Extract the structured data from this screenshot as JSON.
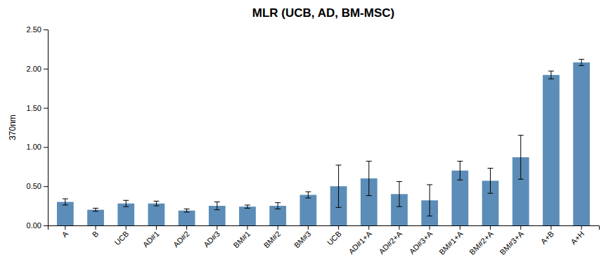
{
  "chart_data": {
    "type": "bar",
    "title": "MLR (UCB, AD, BM-MSC)",
    "ylabel": "370nm",
    "categories": [
      "A",
      "B",
      "UCB",
      "AD#1",
      "AD#2",
      "AD#3",
      "BM#1",
      "BM#2",
      "BM#3",
      "UCB",
      "AD#1+A",
      "AD#2+A",
      "AD#3+A",
      "BM#1+A",
      "BM#2+A",
      "BM#3+A",
      "A+B",
      "A+H"
    ],
    "values": [
      0.3,
      0.2,
      0.28,
      0.28,
      0.19,
      0.25,
      0.24,
      0.25,
      0.39,
      0.5,
      0.6,
      0.4,
      0.32,
      0.7,
      0.57,
      0.87,
      1.92,
      2.08
    ],
    "errors": [
      0.04,
      0.02,
      0.04,
      0.03,
      0.02,
      0.05,
      0.02,
      0.04,
      0.04,
      0.27,
      0.22,
      0.16,
      0.2,
      0.12,
      0.16,
      0.28,
      0.05,
      0.04
    ],
    "color": "#5B8DB8",
    "ylim": [
      0,
      2.5
    ],
    "yticks": [
      {
        "value": 0,
        "label": "0.00"
      },
      {
        "value": 0.5,
        "label": "0.50"
      },
      {
        "value": 1,
        "label": "1.00"
      },
      {
        "value": 1.5,
        "label": "1.50"
      },
      {
        "value": 2,
        "label": "2.00"
      },
      {
        "value": 2.5,
        "label": "2.50"
      }
    ],
    "grid": false
  }
}
